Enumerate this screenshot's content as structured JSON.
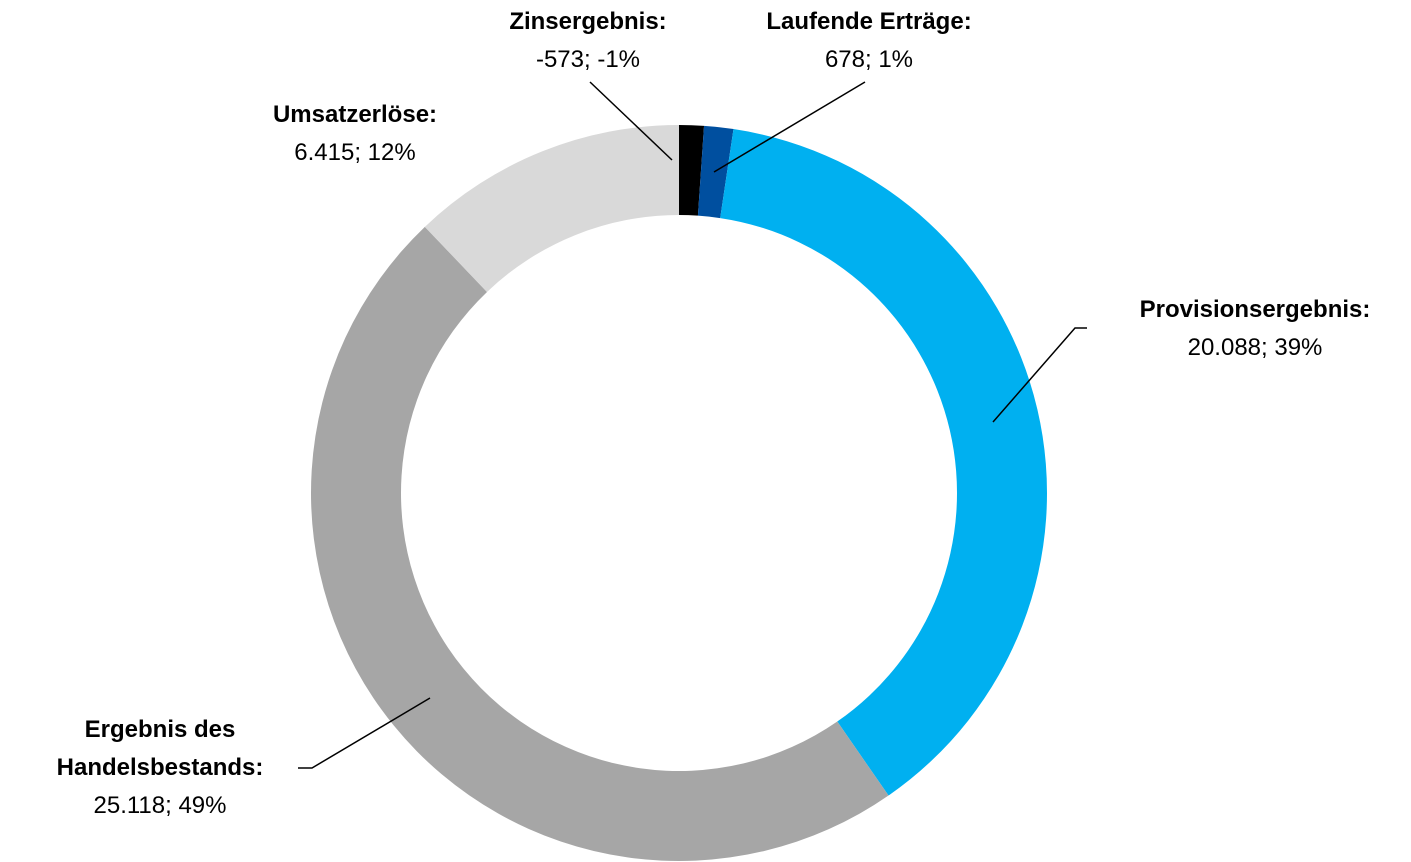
{
  "chart_data": {
    "type": "donut",
    "categories": [
      "Zinsergebnis:",
      "Laufende Erträge:",
      "Provisionsergebnis:",
      "Ergebnis des Handelsbestands:",
      "Umsatzerlöse:"
    ],
    "values": [
      -573,
      678,
      20088,
      25118,
      6415
    ],
    "value_labels": [
      "-573; -1%",
      "678; 1%",
      "20.088; 39%",
      "25.118; 49%",
      "6.415; 12%"
    ],
    "colors": [
      "#000000",
      "#004f9f",
      "#00b0f0",
      "#a6a6a6",
      "#d9d9d9"
    ]
  }
}
